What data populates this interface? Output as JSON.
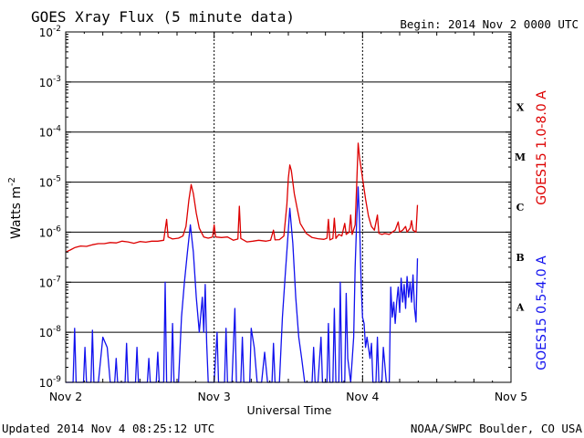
{
  "header": {
    "title": "GOES Xray Flux (5 minute data)",
    "begin": "Begin:  2014 Nov 2 0000 UTC"
  },
  "footer": {
    "updated": "Updated 2014 Nov  4 08:25:12 UTC",
    "credit": "NOAA/SWPC Boulder, CO USA"
  },
  "colors": {
    "long_series": "#dd0000",
    "short_series": "#1111ee",
    "axis": "#000000",
    "grid": "#000000"
  },
  "chart_data": {
    "type": "line",
    "title": "GOES Xray Flux (5 minute data)",
    "xlabel": "Universal Time",
    "ylabel": "Watts m",
    "ylabel_superscript": "-2",
    "yscale": "log",
    "xlim": [
      0,
      3
    ],
    "ylim": [
      1e-09,
      0.01
    ],
    "x_ticks": [
      {
        "x": 0,
        "label": "Nov 2"
      },
      {
        "x": 1,
        "label": "Nov 3"
      },
      {
        "x": 2,
        "label": "Nov 4"
      },
      {
        "x": 3,
        "label": "Nov 5"
      }
    ],
    "y_ticks": [
      {
        "exp": -9,
        "base": "10",
        "sup": "-9"
      },
      {
        "exp": -8,
        "base": "10",
        "sup": "-8"
      },
      {
        "exp": -7,
        "base": "10",
        "sup": "-7"
      },
      {
        "exp": -6,
        "base": "10",
        "sup": "-6"
      },
      {
        "exp": -5,
        "base": "10",
        "sup": "-5"
      },
      {
        "exp": -4,
        "base": "10",
        "sup": "-4"
      },
      {
        "exp": -3,
        "base": "10",
        "sup": "-3"
      },
      {
        "exp": -2,
        "base": "10",
        "sup": "-2"
      }
    ],
    "gridlines_y_exp": [
      -8,
      -7,
      -6,
      -5,
      -4,
      -3
    ],
    "dotted_x": [
      1,
      2
    ],
    "flare_classes": [
      {
        "label": "X",
        "exp": -4
      },
      {
        "label": "M",
        "exp": -5
      },
      {
        "label": "C",
        "exp": -6
      },
      {
        "label": "B",
        "exp": -7
      },
      {
        "label": "A",
        "exp": -8
      }
    ],
    "series": [
      {
        "name": "GOES15 1.0-8.0 A",
        "points": [
          [
            0.0,
            4e-07
          ],
          [
            0.03,
            4.4e-07
          ],
          [
            0.06,
            4.9e-07
          ],
          [
            0.1,
            5.3e-07
          ],
          [
            0.14,
            5.2e-07
          ],
          [
            0.18,
            5.6e-07
          ],
          [
            0.22,
            5.9e-07
          ],
          [
            0.26,
            5.9e-07
          ],
          [
            0.3,
            6.2e-07
          ],
          [
            0.34,
            6.1e-07
          ],
          [
            0.38,
            6.6e-07
          ],
          [
            0.42,
            6.4e-07
          ],
          [
            0.46,
            6e-07
          ],
          [
            0.5,
            6.5e-07
          ],
          [
            0.54,
            6.3e-07
          ],
          [
            0.58,
            6.6e-07
          ],
          [
            0.62,
            6.6e-07
          ],
          [
            0.66,
            6.9e-07
          ],
          [
            0.68,
            1.8e-06
          ],
          [
            0.69,
            8e-07
          ],
          [
            0.72,
            7.3e-07
          ],
          [
            0.76,
            7.6e-07
          ],
          [
            0.79,
            8.4e-07
          ],
          [
            0.81,
            1.3e-06
          ],
          [
            0.83,
            4.4e-06
          ],
          [
            0.845,
            8.9e-06
          ],
          [
            0.86,
            5.9e-06
          ],
          [
            0.88,
            2.4e-06
          ],
          [
            0.9,
            1.2e-06
          ],
          [
            0.93,
            8e-07
          ],
          [
            0.96,
            7.6e-07
          ],
          [
            0.99,
            8e-07
          ],
          [
            1.0,
            1.4e-06
          ],
          [
            1.01,
            8e-07
          ],
          [
            1.05,
            7.8e-07
          ],
          [
            1.09,
            8e-07
          ],
          [
            1.13,
            6.9e-07
          ],
          [
            1.16,
            7.3e-07
          ],
          [
            1.17,
            3.3e-06
          ],
          [
            1.18,
            7.5e-07
          ],
          [
            1.22,
            6.4e-07
          ],
          [
            1.26,
            6.6e-07
          ],
          [
            1.3,
            6.9e-07
          ],
          [
            1.35,
            6.6e-07
          ],
          [
            1.38,
            6.9e-07
          ],
          [
            1.4,
            1.1e-06
          ],
          [
            1.41,
            7e-07
          ],
          [
            1.44,
            7.1e-07
          ],
          [
            1.47,
            8.4e-07
          ],
          [
            1.49,
            3.6e-06
          ],
          [
            1.5,
            1.2e-05
          ],
          [
            1.51,
            2.2e-05
          ],
          [
            1.52,
            1.7e-05
          ],
          [
            1.54,
            5.9e-06
          ],
          [
            1.56,
            2.9e-06
          ],
          [
            1.58,
            1.5e-06
          ],
          [
            1.62,
            9.5e-07
          ],
          [
            1.66,
            7.8e-07
          ],
          [
            1.7,
            7.4e-07
          ],
          [
            1.74,
            7.2e-07
          ],
          [
            1.76,
            7.6e-07
          ],
          [
            1.77,
            1.8e-06
          ],
          [
            1.78,
            7e-07
          ],
          [
            1.8,
            7.5e-07
          ],
          [
            1.81,
            1.9e-06
          ],
          [
            1.82,
            7.5e-07
          ],
          [
            1.84,
            9e-07
          ],
          [
            1.86,
            8.4e-07
          ],
          [
            1.88,
            1.5e-06
          ],
          [
            1.89,
            9e-07
          ],
          [
            1.91,
            1e-06
          ],
          [
            1.92,
            2.2e-06
          ],
          [
            1.93,
            9e-07
          ],
          [
            1.95,
            1.4e-06
          ],
          [
            1.96,
            7.9e-06
          ],
          [
            1.97,
            6e-05
          ],
          [
            1.98,
            3e-05
          ],
          [
            2.0,
            1.2e-05
          ],
          [
            2.02,
            4.6e-06
          ],
          [
            2.04,
            2.1e-06
          ],
          [
            2.06,
            1.3e-06
          ],
          [
            2.08,
            1.1e-06
          ],
          [
            2.1,
            2.2e-06
          ],
          [
            2.11,
            9.5e-07
          ],
          [
            2.13,
            9e-07
          ],
          [
            2.15,
            9.4e-07
          ],
          [
            2.18,
            9e-07
          ],
          [
            2.2,
            1e-06
          ],
          [
            2.22,
            1.1e-06
          ],
          [
            2.24,
            1.6e-06
          ],
          [
            2.25,
            1e-06
          ],
          [
            2.27,
            1.1e-06
          ],
          [
            2.29,
            1.3e-06
          ],
          [
            2.3,
            1e-06
          ],
          [
            2.32,
            1.2e-06
          ],
          [
            2.33,
            1.7e-06
          ],
          [
            2.34,
            1.1e-06
          ],
          [
            2.36,
            1e-06
          ],
          [
            2.37,
            3.5e-06
          ]
        ]
      },
      {
        "name": "GOES15 0.5-4.0 A",
        "points": [
          [
            0.0,
            1e-09
          ],
          [
            0.05,
            1e-09
          ],
          [
            0.06,
            1.2e-08
          ],
          [
            0.07,
            1e-09
          ],
          [
            0.12,
            1e-09
          ],
          [
            0.13,
            5e-09
          ],
          [
            0.14,
            1e-09
          ],
          [
            0.17,
            1e-09
          ],
          [
            0.18,
            1.1e-08
          ],
          [
            0.19,
            1e-09
          ],
          [
            0.22,
            1e-09
          ],
          [
            0.25,
            8e-09
          ],
          [
            0.28,
            5e-09
          ],
          [
            0.3,
            1e-09
          ],
          [
            0.33,
            1e-09
          ],
          [
            0.34,
            3e-09
          ],
          [
            0.35,
            1e-09
          ],
          [
            0.4,
            1e-09
          ],
          [
            0.41,
            6e-09
          ],
          [
            0.42,
            1e-09
          ],
          [
            0.47,
            1e-09
          ],
          [
            0.48,
            5e-09
          ],
          [
            0.49,
            1e-09
          ],
          [
            0.55,
            1e-09
          ],
          [
            0.56,
            3e-09
          ],
          [
            0.57,
            1e-09
          ],
          [
            0.61,
            1e-09
          ],
          [
            0.62,
            4e-09
          ],
          [
            0.63,
            1e-09
          ],
          [
            0.66,
            1e-09
          ],
          [
            0.67,
            1e-07
          ],
          [
            0.68,
            1e-09
          ],
          [
            0.71,
            1e-09
          ],
          [
            0.72,
            1.5e-08
          ],
          [
            0.73,
            1e-09
          ],
          [
            0.76,
            1e-09
          ],
          [
            0.78,
            2e-08
          ],
          [
            0.8,
            1e-07
          ],
          [
            0.82,
            4e-07
          ],
          [
            0.84,
            1.4e-06
          ],
          [
            0.86,
            4e-07
          ],
          [
            0.88,
            5e-08
          ],
          [
            0.9,
            1e-08
          ],
          [
            0.92,
            5e-08
          ],
          [
            0.93,
            1e-08
          ],
          [
            0.94,
            9e-08
          ],
          [
            0.95,
            6e-09
          ],
          [
            0.96,
            1e-09
          ],
          [
            1.0,
            1e-09
          ],
          [
            1.02,
            1e-08
          ],
          [
            1.03,
            1e-09
          ],
          [
            1.07,
            1e-09
          ],
          [
            1.08,
            1.2e-08
          ],
          [
            1.09,
            1e-09
          ],
          [
            1.12,
            1e-09
          ],
          [
            1.14,
            3e-08
          ],
          [
            1.15,
            1e-09
          ],
          [
            1.18,
            1e-09
          ],
          [
            1.19,
            8e-09
          ],
          [
            1.2,
            1e-09
          ],
          [
            1.24,
            1e-09
          ],
          [
            1.25,
            1.2e-08
          ],
          [
            1.27,
            5e-09
          ],
          [
            1.29,
            1e-09
          ],
          [
            1.32,
            1e-09
          ],
          [
            1.34,
            4e-09
          ],
          [
            1.36,
            1e-09
          ],
          [
            1.39,
            1e-09
          ],
          [
            1.4,
            6e-09
          ],
          [
            1.41,
            1e-09
          ],
          [
            1.44,
            1e-09
          ],
          [
            1.46,
            2e-08
          ],
          [
            1.48,
            1.5e-07
          ],
          [
            1.5,
            1.1e-06
          ],
          [
            1.51,
            3e-06
          ],
          [
            1.53,
            6e-07
          ],
          [
            1.55,
            5e-08
          ],
          [
            1.57,
            8e-09
          ],
          [
            1.59,
            3e-09
          ],
          [
            1.61,
            1e-09
          ],
          [
            1.66,
            1e-09
          ],
          [
            1.67,
            5e-09
          ],
          [
            1.68,
            1e-09
          ],
          [
            1.7,
            1e-09
          ],
          [
            1.72,
            8e-09
          ],
          [
            1.73,
            1e-09
          ],
          [
            1.76,
            1e-09
          ],
          [
            1.77,
            1.5e-08
          ],
          [
            1.78,
            1e-09
          ],
          [
            1.8,
            1e-09
          ],
          [
            1.81,
            3e-08
          ],
          [
            1.82,
            1e-09
          ],
          [
            1.84,
            1e-09
          ],
          [
            1.85,
            1e-07
          ],
          [
            1.86,
            1e-09
          ],
          [
            1.88,
            1e-09
          ],
          [
            1.89,
            6e-08
          ],
          [
            1.9,
            3e-09
          ],
          [
            1.92,
            1e-09
          ],
          [
            1.94,
            8e-09
          ],
          [
            1.95,
            2e-07
          ],
          [
            1.96,
            1.5e-06
          ],
          [
            1.97,
            8e-06
          ],
          [
            1.98,
            1.5e-06
          ],
          [
            1.99,
            1e-07
          ],
          [
            2.0,
            2e-08
          ],
          [
            2.01,
            1.5e-08
          ],
          [
            2.02,
            5e-09
          ],
          [
            2.03,
            8e-09
          ],
          [
            2.05,
            3e-09
          ],
          [
            2.06,
            6e-09
          ],
          [
            2.07,
            1e-09
          ],
          [
            2.09,
            1e-09
          ],
          [
            2.1,
            8e-09
          ],
          [
            2.11,
            1e-09
          ],
          [
            2.13,
            1e-09
          ],
          [
            2.14,
            5e-09
          ],
          [
            2.16,
            1e-09
          ],
          [
            2.18,
            1e-09
          ],
          [
            2.19,
            8e-08
          ],
          [
            2.2,
            2e-08
          ],
          [
            2.21,
            4e-08
          ],
          [
            2.22,
            1.5e-08
          ],
          [
            2.23,
            4e-08
          ],
          [
            2.24,
            8e-08
          ],
          [
            2.25,
            2.5e-08
          ],
          [
            2.26,
            1.2e-07
          ],
          [
            2.27,
            4e-08
          ],
          [
            2.28,
            9e-08
          ],
          [
            2.29,
            3e-08
          ],
          [
            2.3,
            1.3e-07
          ],
          [
            2.31,
            5e-08
          ],
          [
            2.32,
            1e-07
          ],
          [
            2.33,
            4e-08
          ],
          [
            2.34,
            1.4e-07
          ],
          [
            2.35,
            3e-08
          ],
          [
            2.36,
            1.6e-08
          ],
          [
            2.37,
            3e-07
          ]
        ]
      }
    ]
  }
}
